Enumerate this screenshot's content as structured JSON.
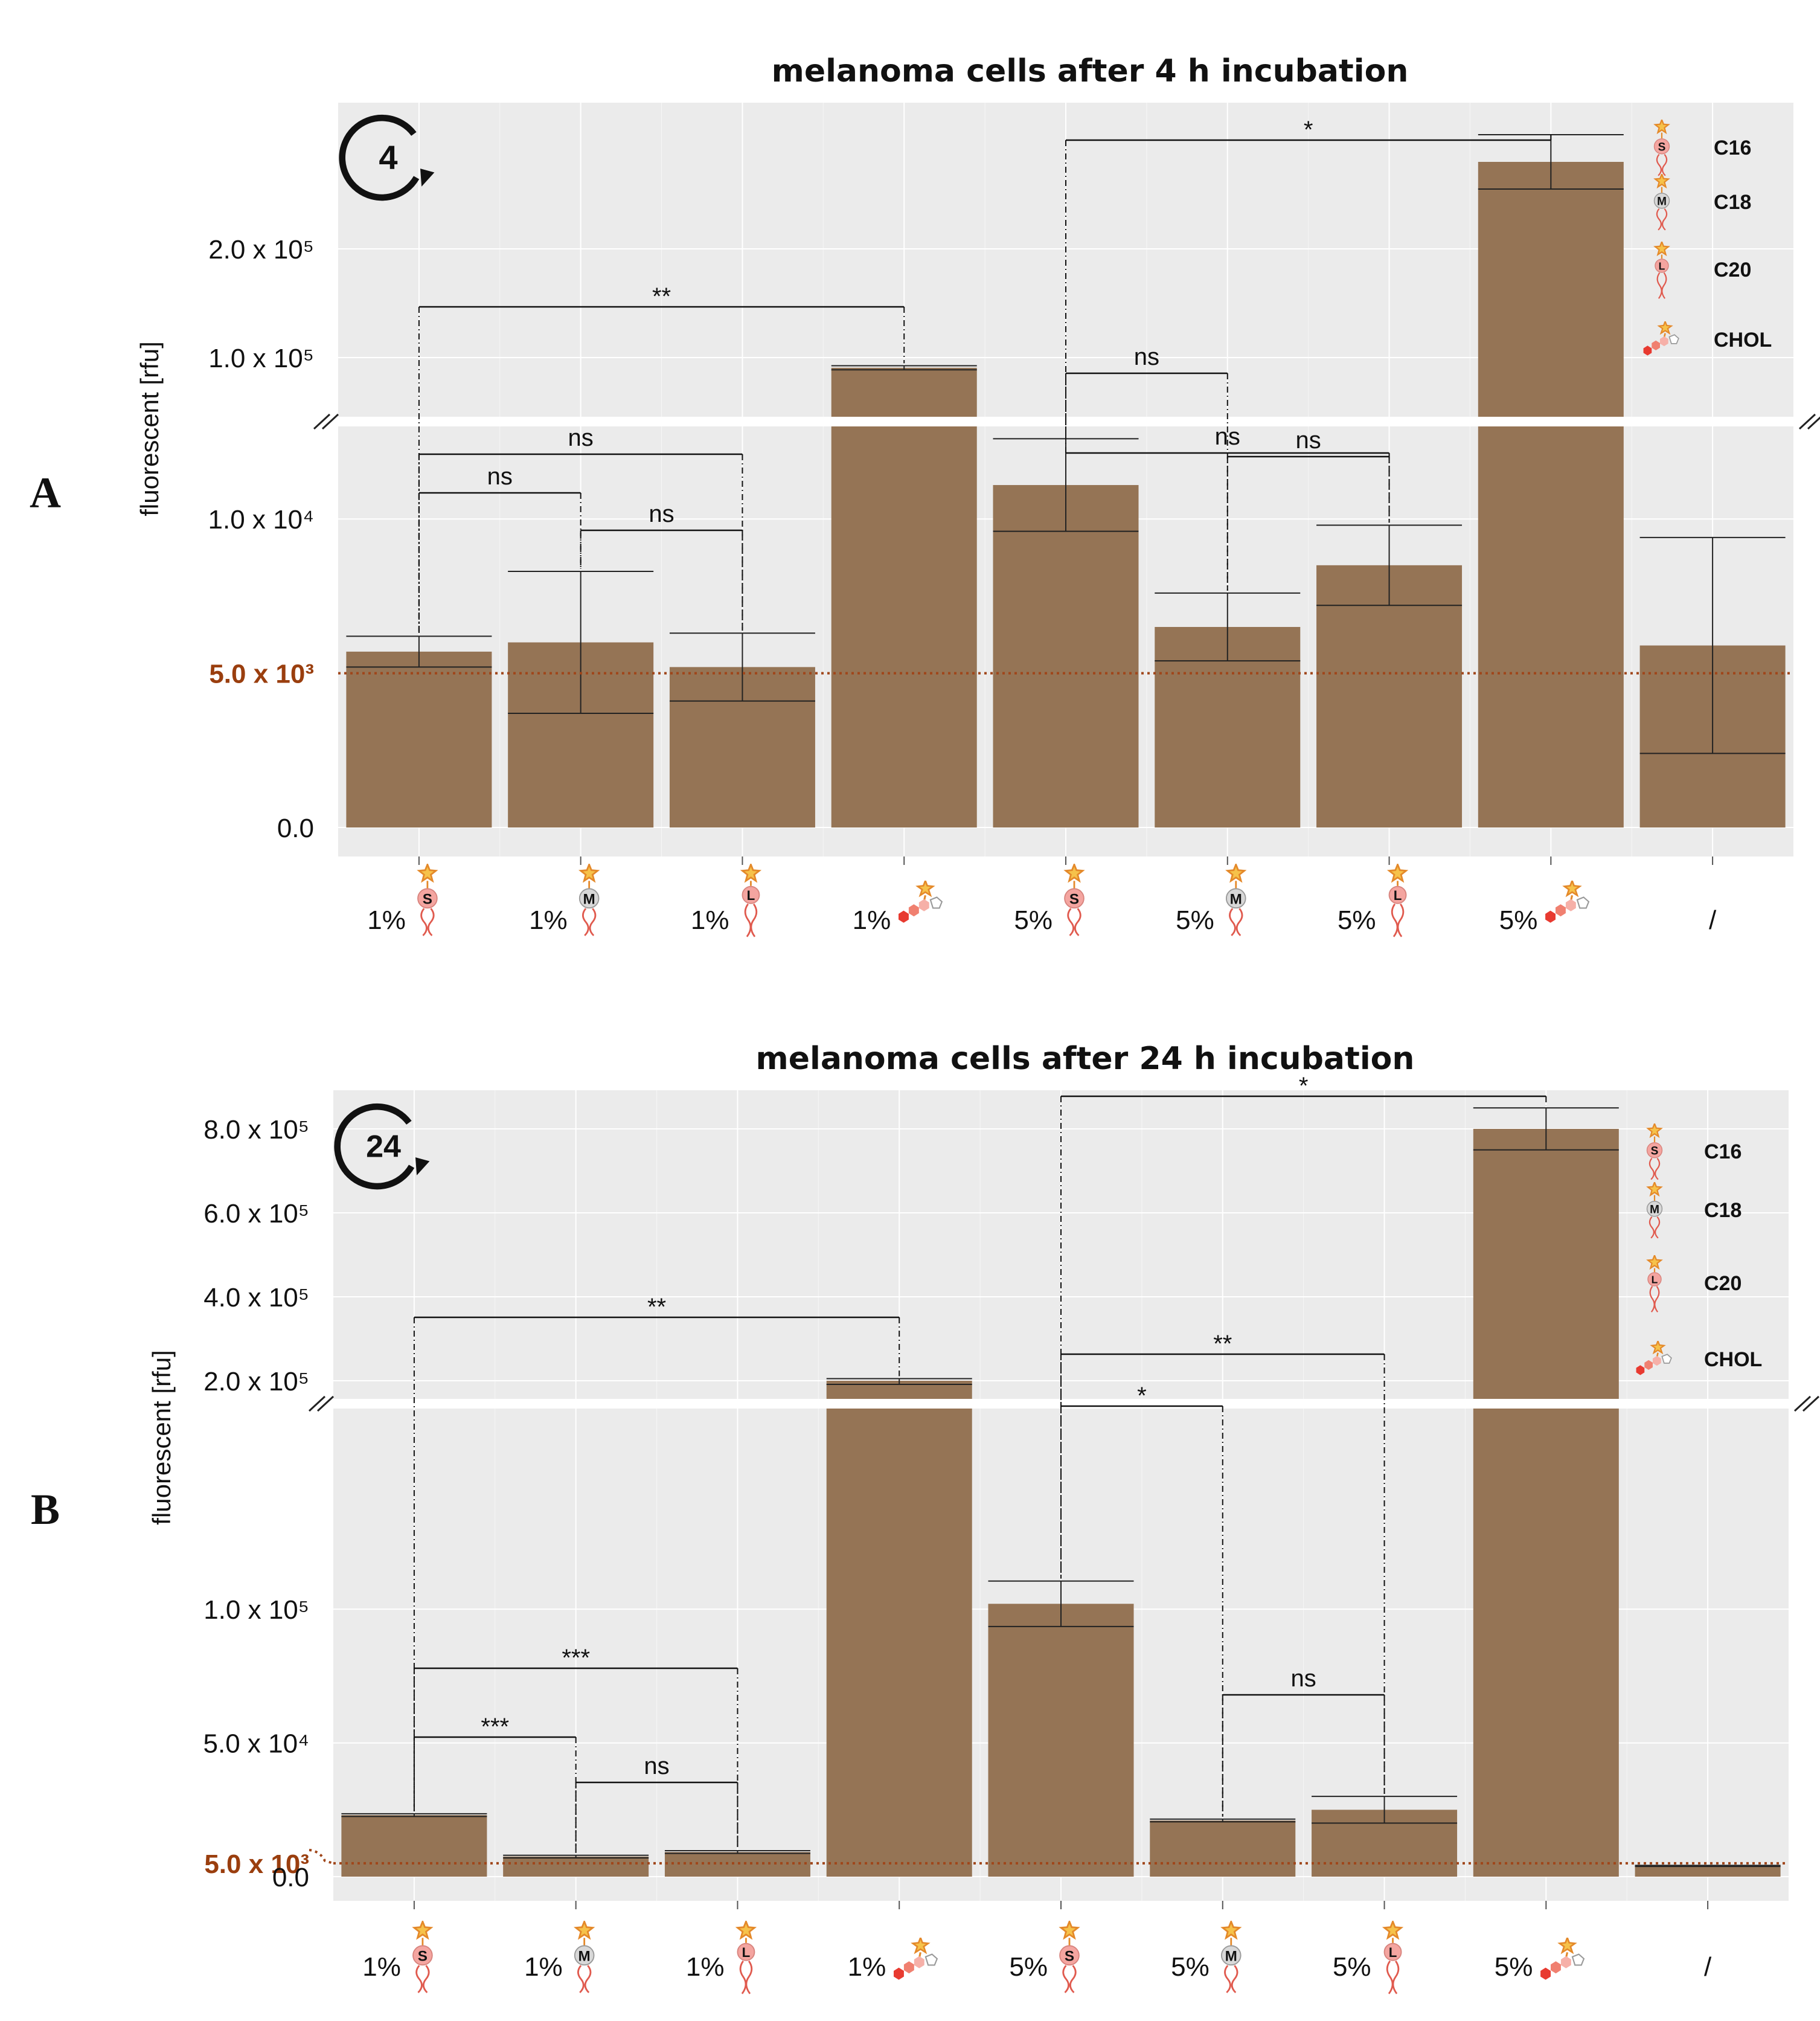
{
  "panels": [
    {
      "letter": "A",
      "title": "melanoma cells after 4 h incubation",
      "ylabel": "fluorescent [rfu]",
      "cycle_label": "4",
      "ref_label": "5.0 x 10³",
      "ticks_upper": [
        {
          "label": "2.0 x 10⁵",
          "value": 200000
        },
        {
          "label": "1.0 x 10⁵",
          "value": 100000
        }
      ],
      "ticks_lower": [
        {
          "label": "1.0 x 10⁴",
          "value": 10000
        },
        {
          "label": "0.0",
          "value": 0
        }
      ],
      "legend": [
        "C16",
        "C18",
        "C20",
        "CHOL"
      ],
      "significance": [
        {
          "label": "*"
        },
        {
          "label": "**"
        },
        {
          "label": "ns"
        },
        {
          "label": "ns"
        },
        {
          "label": "ns"
        },
        {
          "label": "ns"
        },
        {
          "label": "ns"
        },
        {
          "label": "ns"
        }
      ]
    },
    {
      "letter": "B",
      "title": "melanoma cells after 24 h incubation",
      "ylabel": "fluorescent [rfu]",
      "cycle_label": "24",
      "ref_label": "5.0 x 10³",
      "ticks_upper": [
        {
          "label": "8.0 x 10⁵",
          "value": 800000
        },
        {
          "label": "6.0 x 10⁵",
          "value": 600000
        },
        {
          "label": "4.0 x 10⁵",
          "value": 400000
        },
        {
          "label": "2.0 x 10⁵",
          "value": 200000
        }
      ],
      "ticks_lower": [
        {
          "label": "1.0 x 10⁵",
          "value": 100000
        },
        {
          "label": "5.0 x 10⁴",
          "value": 50000
        },
        {
          "label": "0.0",
          "value": 0
        }
      ],
      "legend": [
        "C16",
        "C18",
        "C20",
        "CHOL"
      ],
      "significance": [
        {
          "label": "*"
        },
        {
          "label": "**"
        },
        {
          "label": "**"
        },
        {
          "label": "*"
        },
        {
          "label": "***"
        },
        {
          "label": "***"
        },
        {
          "label": "ns"
        },
        {
          "label": "ns"
        }
      ]
    }
  ],
  "chart_data": [
    {
      "type": "bar",
      "title": "melanoma cells after 4 h incubation",
      "xlabel": "",
      "ylabel": "fluorescent [rfu]",
      "y_axis_break": true,
      "lower_segment_ylim": [
        0,
        13000
      ],
      "upper_segment_ticks": [
        100000,
        200000
      ],
      "reference_line": 5000,
      "categories": [
        "1% C16",
        "1% C18",
        "1% C20",
        "1% CHOL",
        "5% C16",
        "5% C18",
        "5% C20",
        "5% CHOL",
        "/"
      ],
      "category_labels": [
        "1%",
        "1%",
        "1%",
        "1%",
        "5%",
        "5%",
        "5%",
        "5%",
        "/"
      ],
      "category_lipids": [
        "S",
        "M",
        "L",
        "CHOL",
        "S",
        "M",
        "L",
        "CHOL",
        ""
      ],
      "values": [
        5700,
        6000,
        5200,
        85000,
        11100,
        6500,
        8500,
        280000,
        5900
      ],
      "error": [
        500,
        2300,
        1100,
        3000,
        1500,
        1100,
        1300,
        25000,
        3500
      ],
      "significance": [
        {
          "from": 4,
          "to": 7,
          "label": "*"
        },
        {
          "from": 0,
          "to": 3,
          "label": "**"
        },
        {
          "from": 4,
          "to": 6,
          "label": "ns"
        },
        {
          "from": 4,
          "to": 5,
          "label": "ns"
        },
        {
          "from": 0,
          "to": 2,
          "label": "ns"
        },
        {
          "from": 0,
          "to": 1,
          "label": "ns"
        },
        {
          "from": 1,
          "to": 2,
          "label": "ns"
        },
        {
          "from": 5,
          "to": 6,
          "label": "ns"
        }
      ]
    },
    {
      "type": "bar",
      "title": "melanoma cells after 24 h incubation",
      "xlabel": "",
      "ylabel": "fluorescent [rfu]",
      "y_axis_break": true,
      "lower_segment_ylim": [
        0,
        175000
      ],
      "upper_segment_ticks": [
        200000,
        400000,
        600000,
        800000
      ],
      "reference_line": 5000,
      "categories": [
        "1% C16",
        "1% C18",
        "1% C20",
        "1% CHOL",
        "5% C16",
        "5% C18",
        "5% C20",
        "5% CHOL",
        "/"
      ],
      "category_labels": [
        "1%",
        "1%",
        "1%",
        "1%",
        "5%",
        "5%",
        "5%",
        "5%",
        "/"
      ],
      "category_lipids": [
        "S",
        "M",
        "L",
        "CHOL",
        "S",
        "M",
        "L",
        "CHOL",
        ""
      ],
      "values": [
        23000,
        7500,
        9200,
        200000,
        102000,
        21000,
        25000,
        800000,
        4000
      ],
      "error": [
        500,
        500,
        500,
        5000,
        8500,
        500,
        5000,
        50000,
        200
      ],
      "significance": [
        {
          "from": 4,
          "to": 7,
          "label": "*"
        },
        {
          "from": 0,
          "to": 3,
          "label": "**"
        },
        {
          "from": 4,
          "to": 6,
          "label": "**"
        },
        {
          "from": 4,
          "to": 5,
          "label": "*"
        },
        {
          "from": 0,
          "to": 2,
          "label": "***"
        },
        {
          "from": 0,
          "to": 1,
          "label": "***"
        },
        {
          "from": 1,
          "to": 2,
          "label": "ns"
        },
        {
          "from": 5,
          "to": 6,
          "label": "ns"
        }
      ]
    }
  ]
}
